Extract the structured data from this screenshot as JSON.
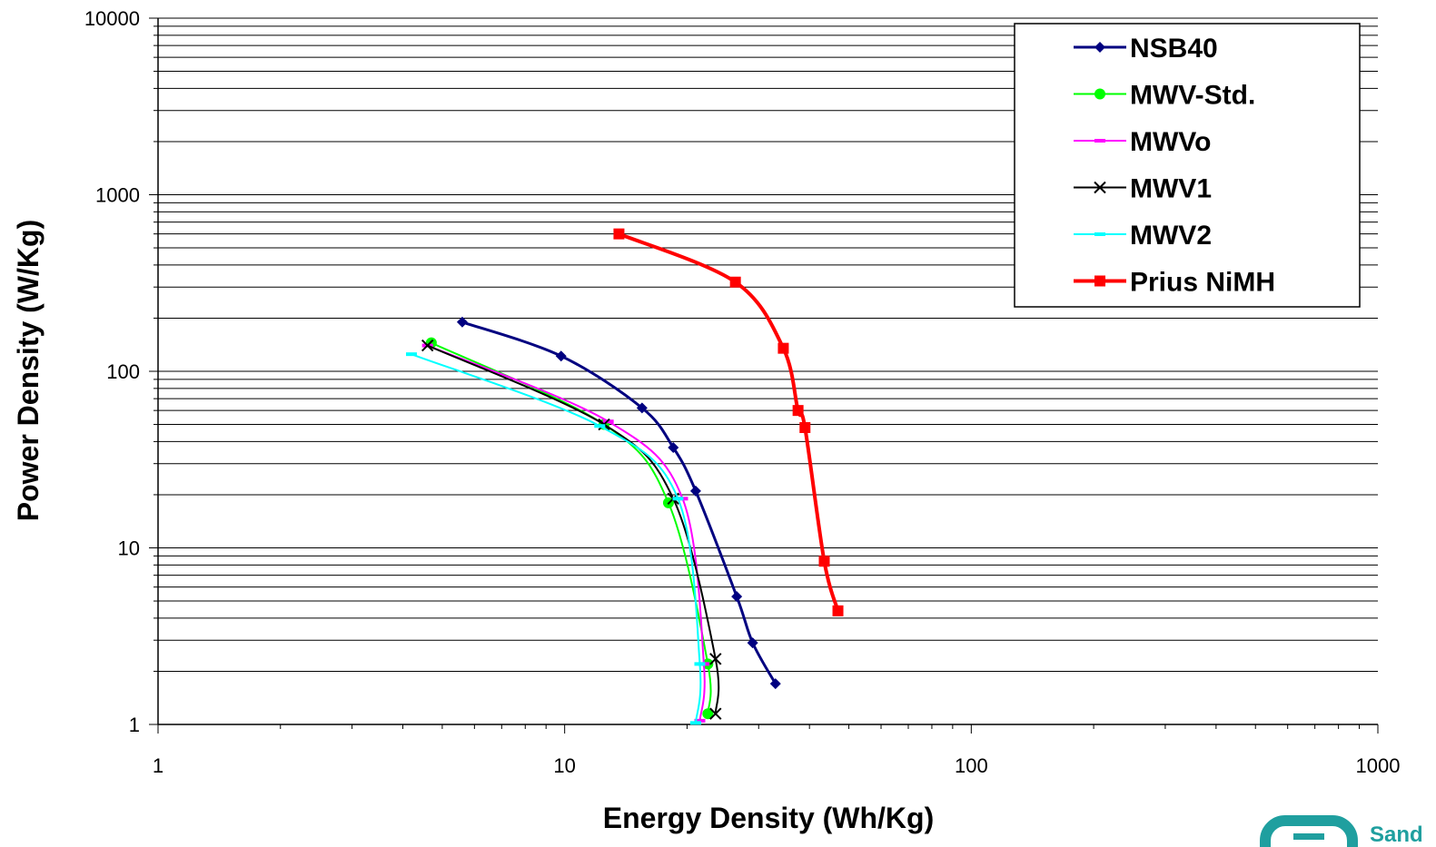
{
  "chart_data": {
    "type": "line",
    "title": "",
    "xlabel": "Energy Density (Wh/Kg)",
    "ylabel": "Power Density (W/Kg)",
    "xscale": "log",
    "yscale": "log",
    "xlim": [
      1,
      1000
    ],
    "ylim": [
      1,
      10000
    ],
    "x_tick_labels": [
      "1",
      "10",
      "100",
      "1000"
    ],
    "y_tick_labels": [
      "1",
      "10",
      "100",
      "1000",
      "10000"
    ],
    "grid": "horizontal major and minor",
    "legend": "top-right",
    "series": [
      {
        "name": "NSB40",
        "color": "#000080",
        "marker": "diamond",
        "points": [
          [
            5.6,
            190
          ],
          [
            9.8,
            122
          ],
          [
            15.5,
            62
          ],
          [
            18.5,
            37
          ],
          [
            21,
            21
          ],
          [
            26.5,
            5.3
          ],
          [
            29,
            2.9
          ],
          [
            33,
            1.7
          ]
        ]
      },
      {
        "name": "MWV-Std.",
        "color": "#00ff00",
        "marker": "circle",
        "points": [
          [
            4.7,
            145
          ],
          [
            12.5,
            50
          ],
          [
            18,
            18
          ],
          [
            22.5,
            2.2
          ],
          [
            22.5,
            1.15
          ]
        ]
      },
      {
        "name": "MWVo",
        "color": "#ff00ff",
        "marker": "dash",
        "points": [
          [
            4.6,
            140
          ],
          [
            12.8,
            52
          ],
          [
            19.5,
            19
          ],
          [
            22,
            2.2
          ],
          [
            21.5,
            1.05
          ]
        ]
      },
      {
        "name": "MWV1",
        "color": "#000000",
        "marker": "x",
        "points": [
          [
            4.6,
            140
          ],
          [
            12.5,
            50
          ],
          [
            18.5,
            19
          ],
          [
            23.5,
            2.35
          ],
          [
            23.5,
            1.15
          ]
        ]
      },
      {
        "name": "MWV2",
        "color": "#00ffff",
        "marker": "dash",
        "points": [
          [
            4.2,
            125
          ],
          [
            12.2,
            49
          ],
          [
            19,
            19
          ],
          [
            21.5,
            2.2
          ],
          [
            21,
            1.02
          ]
        ]
      },
      {
        "name": "Prius NiMH",
        "color": "#ff0000",
        "marker": "square",
        "points": [
          [
            13.6,
            600
          ],
          [
            26.3,
            320
          ],
          [
            34.5,
            135
          ],
          [
            37.5,
            60
          ],
          [
            39,
            48
          ],
          [
            43.5,
            8.4
          ],
          [
            47,
            4.4
          ]
        ]
      }
    ]
  },
  "logo": {
    "text": "Sand"
  }
}
